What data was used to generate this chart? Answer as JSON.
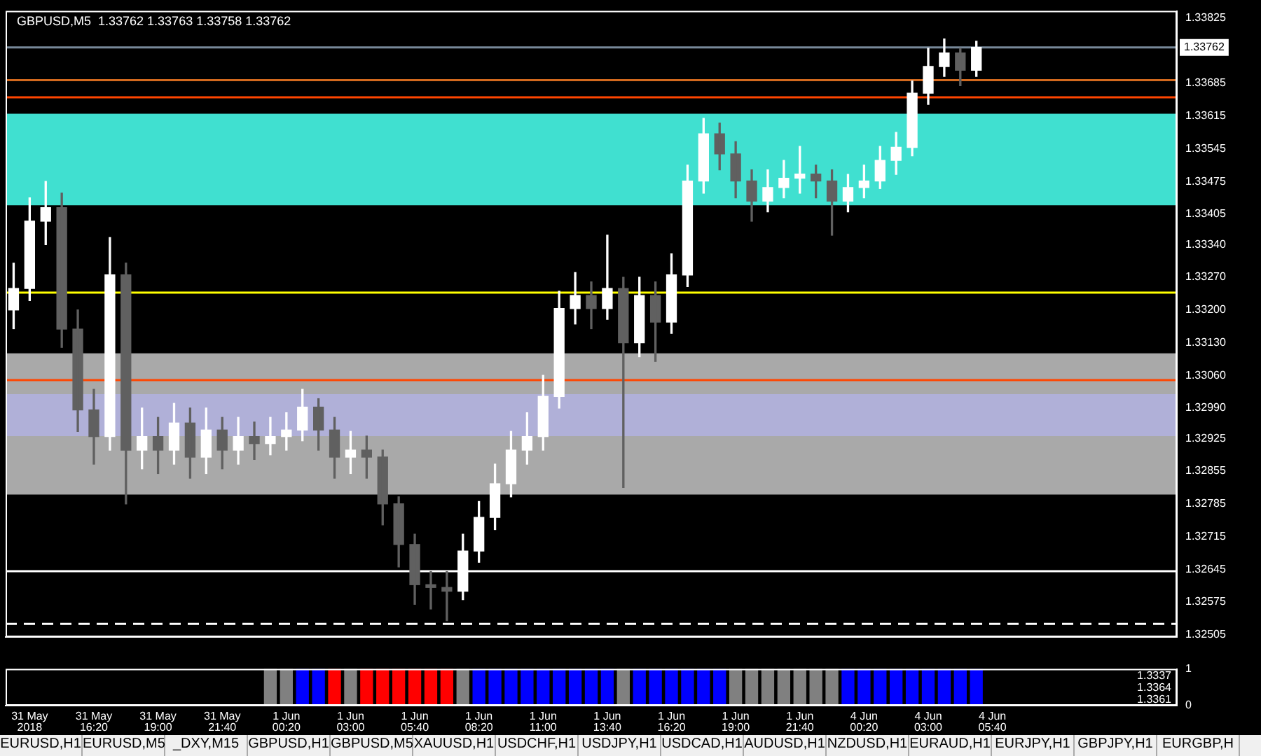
{
  "chart_data": [
    {
      "type": "candlestick",
      "title": "GBPUSD,M5  1.33762 1.33763 1.33758 1.33762",
      "colors": [
        "#ffffff",
        "#ffffff",
        "#ffffff",
        "#606060",
        "#606060",
        "#606060",
        "#ffffff",
        "#606060",
        "#ffffff",
        "#606060",
        "#ffffff",
        "#606060",
        "#ffffff",
        "#606060",
        "#ffffff",
        "#606060",
        "#ffffff",
        "#ffffff",
        "#ffffff",
        "#606060",
        "#606060",
        "#ffffff",
        "#606060",
        "#606060",
        "#606060",
        "#606060",
        "#606060",
        "#606060",
        "#ffffff",
        "#ffffff",
        "#ffffff",
        "#ffffff",
        "#ffffff",
        "#ffffff",
        "#ffffff",
        "#ffffff",
        "#606060",
        "#ffffff",
        "#606060",
        "#ffffff",
        "#606060",
        "#ffffff",
        "#ffffff",
        "#ffffff",
        "#606060",
        "#606060",
        "#606060",
        "#ffffff",
        "#ffffff",
        "#ffffff",
        "#606060",
        "#606060",
        "#ffffff",
        "#ffffff",
        "#ffffff",
        "#ffffff",
        "#ffffff",
        "#ffffff",
        "#ffffff",
        "#606060",
        "#ffffff",
        null,
        null,
        null,
        null,
        null,
        null,
        null,
        null,
        null,
        null,
        null,
        null
      ],
      "categories": [
        null,
        null,
        null,
        null,
        null,
        null,
        null,
        null,
        null,
        null,
        null,
        null,
        null,
        null,
        null,
        null,
        null,
        null,
        null,
        null,
        null,
        null,
        null,
        null,
        null,
        null,
        null,
        null,
        null,
        null,
        null,
        null,
        null,
        null,
        null,
        null,
        null,
        null,
        null,
        null,
        null,
        null,
        null,
        null,
        null,
        null,
        null,
        null,
        null,
        null,
        null,
        null,
        null,
        null,
        null,
        null,
        null,
        null,
        null,
        null,
        null,
        null,
        null,
        null,
        null,
        null,
        null,
        null,
        null,
        null,
        null,
        null,
        null
      ],
      "ohlc": [
        [
          1.332,
          1.333,
          1.3316,
          1.33246
        ],
        [
          1.33246,
          1.3344,
          1.3322,
          1.3339
        ],
        [
          1.3339,
          1.33475,
          1.3334,
          1.33419
        ],
        [
          1.33419,
          1.3345,
          1.3312,
          1.33159
        ],
        [
          1.33159,
          1.332,
          1.3294,
          1.32986
        ],
        [
          1.32986,
          1.3303,
          1.3287,
          1.32929
        ],
        [
          1.32929,
          1.33355,
          1.329,
          1.33275
        ],
        [
          1.33275,
          1.333,
          1.32785,
          1.329
        ],
        [
          1.329,
          1.3299,
          1.3286,
          1.32929
        ],
        [
          1.32929,
          1.3297,
          1.3285,
          1.329
        ],
        [
          1.329,
          1.33,
          1.3287,
          1.32958
        ],
        [
          1.32958,
          1.3299,
          1.3284,
          1.32885
        ],
        [
          1.32885,
          1.3299,
          1.3285,
          1.32943
        ],
        [
          1.32943,
          1.3297,
          1.3286,
          1.329
        ],
        [
          1.329,
          1.3297,
          1.3287,
          1.32929
        ],
        [
          1.32929,
          1.3296,
          1.3288,
          1.32914
        ],
        [
          1.32914,
          1.3297,
          1.3289,
          1.32929
        ],
        [
          1.32929,
          1.3298,
          1.329,
          1.32943
        ],
        [
          1.32943,
          1.3303,
          1.3292,
          1.32992
        ],
        [
          1.32992,
          1.3301,
          1.329,
          1.32943
        ],
        [
          1.32943,
          1.3297,
          1.3284,
          1.32885
        ],
        [
          1.32885,
          1.3294,
          1.3285,
          1.329
        ],
        [
          1.329,
          1.3293,
          1.3284,
          1.32885
        ],
        [
          1.32885,
          1.329,
          1.3274,
          1.32785
        ],
        [
          1.32785,
          1.328,
          1.3265,
          1.32698
        ],
        [
          1.32698,
          1.3272,
          1.3257,
          1.32612
        ],
        [
          1.32612,
          1.3264,
          1.3256,
          1.32606
        ],
        [
          1.32606,
          1.3264,
          1.32535,
          1.32598
        ],
        [
          1.32598,
          1.3272,
          1.3258,
          1.32684
        ],
        [
          1.32684,
          1.3279,
          1.3266,
          1.32756
        ],
        [
          1.32756,
          1.3287,
          1.3273,
          1.32828
        ],
        [
          1.32828,
          1.3294,
          1.328,
          1.329
        ],
        [
          1.329,
          1.3298,
          1.3287,
          1.32929
        ],
        [
          1.32929,
          1.3306,
          1.329,
          1.33015
        ],
        [
          1.33015,
          1.3324,
          1.3299,
          1.33203
        ],
        [
          1.33203,
          1.3328,
          1.3317,
          1.33231
        ],
        [
          1.33231,
          1.3326,
          1.3316,
          1.33203
        ],
        [
          1.33203,
          1.3336,
          1.3318,
          1.33246
        ],
        [
          1.33246,
          1.3327,
          1.3282,
          1.3313
        ],
        [
          1.3313,
          1.3327,
          1.331,
          1.33231
        ],
        [
          1.33231,
          1.3326,
          1.3309,
          1.33174
        ],
        [
          1.33174,
          1.3332,
          1.3315,
          1.33275
        ],
        [
          1.33275,
          1.3351,
          1.3325,
          1.33476
        ],
        [
          1.33476,
          1.3361,
          1.3345,
          1.33577
        ],
        [
          1.33577,
          1.336,
          1.335,
          1.33534
        ],
        [
          1.33534,
          1.3356,
          1.3344,
          1.33476
        ],
        [
          1.33476,
          1.335,
          1.3339,
          1.33433
        ],
        [
          1.33433,
          1.335,
          1.3341,
          1.33462
        ],
        [
          1.33462,
          1.3352,
          1.3344,
          1.33482
        ],
        [
          1.33482,
          1.3355,
          1.3345,
          1.33491
        ],
        [
          1.33491,
          1.3351,
          1.3344,
          1.33476
        ],
        [
          1.33476,
          1.335,
          1.3336,
          1.33433
        ],
        [
          1.33433,
          1.3349,
          1.3341,
          1.33462
        ],
        [
          1.33462,
          1.3351,
          1.3344,
          1.33476
        ],
        [
          1.33476,
          1.3355,
          1.3346,
          1.3352
        ],
        [
          1.3352,
          1.3358,
          1.3349,
          1.33548
        ],
        [
          1.33548,
          1.3369,
          1.3353,
          1.33664
        ],
        [
          1.33664,
          1.3376,
          1.3364,
          1.33721
        ],
        [
          1.33721,
          1.3378,
          1.337,
          1.3375
        ],
        [
          1.3375,
          1.3376,
          1.3368,
          1.33713
        ],
        [
          1.33713,
          1.33775,
          1.337,
          1.33762
        ],
        null,
        null,
        null,
        null,
        null,
        null,
        null,
        null,
        null,
        null,
        null,
        null
      ],
      "ylim": [
        1.325,
        1.3384
      ],
      "yticks": [
        {
          "value": 1.33825,
          "label": "1.33825"
        },
        {
          "value": 1.33685,
          "label": "1.33685"
        },
        {
          "value": 1.33615,
          "label": "1.33615"
        },
        {
          "value": 1.33545,
          "label": "1.33545"
        },
        {
          "value": 1.33475,
          "label": "1.33475"
        },
        {
          "value": 1.33405,
          "label": "1.33405"
        },
        {
          "value": 1.3334,
          "label": "1.33340"
        },
        {
          "value": 1.3327,
          "label": "1.33270"
        },
        {
          "value": 1.332,
          "label": "1.33200"
        },
        {
          "value": 1.3313,
          "label": "1.33130"
        },
        {
          "value": 1.3306,
          "label": "1.33060"
        },
        {
          "value": 1.3299,
          "label": "1.32990"
        },
        {
          "value": 1.32925,
          "label": "1.32925"
        },
        {
          "value": 1.32855,
          "label": "1.32855"
        },
        {
          "value": 1.32785,
          "label": "1.32785"
        },
        {
          "value": 1.32715,
          "label": "1.32715"
        },
        {
          "value": 1.32645,
          "label": "1.32645"
        },
        {
          "value": 1.32575,
          "label": "1.32575"
        },
        {
          "value": 1.32505,
          "label": "1.32505"
        }
      ],
      "grid": false,
      "bands": [
        {
          "axis": "y",
          "from": 1.33424,
          "to": 1.3362,
          "color": "#40e0d0"
        },
        {
          "axis": "y",
          "from": 1.32805,
          "to": 1.33107,
          "color": "#a9a9a9"
        },
        {
          "axis": "y",
          "from": 1.3293,
          "to": 1.3302,
          "color": "#b0b0d8"
        }
      ],
      "ref_lines": [
        {
          "axis": "y",
          "value": 1.33762,
          "label": "1.33762",
          "color": "#778899"
        },
        {
          "axis": "y",
          "value": 1.33655,
          "color": "#ff4500"
        },
        {
          "axis": "y",
          "value": 1.33692,
          "color": "#d2691e"
        },
        {
          "axis": "y",
          "value": 1.33237,
          "color": "#ffff00"
        },
        {
          "axis": "y",
          "value": 1.3305,
          "color": "#ff4500"
        },
        {
          "axis": "y",
          "value": 1.32641,
          "color": "#ffffff"
        },
        {
          "axis": "y",
          "value": 1.32528,
          "color": "#ffffff",
          "line_style": "dashed"
        }
      ]
    },
    {
      "type": "bar",
      "categories": [
        null,
        "31 May 2018",
        null,
        null,
        null,
        "31 May 16:20",
        null,
        null,
        null,
        "31 May 19:00",
        null,
        null,
        null,
        "31 May 21:40",
        null,
        null,
        null,
        "1 Jun 00:20",
        null,
        null,
        null,
        "1 Jun 03:00",
        null,
        null,
        null,
        "1 Jun 05:40",
        null,
        null,
        null,
        "1 Jun 08:20",
        null,
        null,
        null,
        "1 Jun 11:00",
        null,
        null,
        null,
        "1 Jun 13:40",
        null,
        null,
        null,
        "1 Jun 16:20",
        null,
        null,
        null,
        "1 Jun 19:00",
        null,
        null,
        null,
        "1 Jun 21:40",
        null,
        null,
        null,
        "4 Jun 00:20",
        null,
        null,
        null,
        "4 Jun 03:00",
        null,
        null,
        null,
        "4 Jun 05:40",
        null,
        null,
        null,
        null,
        null,
        null,
        null,
        null,
        null,
        null,
        null
      ],
      "values": [
        null,
        null,
        null,
        null,
        null,
        null,
        null,
        null,
        null,
        null,
        null,
        null,
        null,
        null,
        null,
        null,
        1,
        1,
        1,
        1,
        1,
        1,
        1,
        1,
        1,
        1,
        1,
        1,
        1,
        1,
        1,
        1,
        1,
        1,
        1,
        1,
        1,
        1,
        1,
        1,
        1,
        1,
        1,
        1,
        1,
        1,
        1,
        1,
        1,
        1,
        1,
        1,
        1,
        1,
        1,
        1,
        1,
        1,
        1,
        1,
        1,
        null,
        null,
        null,
        null,
        null,
        null,
        null,
        null,
        null,
        null,
        null,
        null
      ],
      "colors": [
        "#808080",
        "#808080",
        "#808080",
        "#808080",
        "#808080",
        "#808080",
        "#808080",
        "#808080",
        "#808080",
        "#808080",
        "#808080",
        "#808080",
        "#808080",
        "#808080",
        "#808080",
        "#808080",
        "#808080",
        "#808080",
        "#0000ff",
        "#0000ff",
        "#ff0000",
        "#808080",
        "#ff0000",
        "#ff0000",
        "#ff0000",
        "#ff0000",
        "#ff0000",
        "#ff0000",
        "#808080",
        "#0000ff",
        "#0000ff",
        "#0000ff",
        "#0000ff",
        "#0000ff",
        "#0000ff",
        "#0000ff",
        "#0000ff",
        "#0000ff",
        "#808080",
        "#0000ff",
        "#0000ff",
        "#0000ff",
        "#0000ff",
        "#0000ff",
        "#0000ff",
        "#808080",
        "#808080",
        "#808080",
        "#808080",
        "#808080",
        "#808080",
        "#808080",
        "#0000ff",
        "#0000ff",
        "#0000ff",
        "#0000ff",
        "#0000ff",
        "#0000ff",
        "#0000ff",
        "#0000ff",
        "#0000ff",
        "#0000ff",
        "#0000ff",
        "#0000ff",
        "#0000ff",
        "#0000ff",
        "#0000ff",
        "#0000ff",
        "#0000ff",
        "#0000ff",
        "#0000ff",
        "#0000ff",
        "#0000ff"
      ],
      "ylim": [
        0,
        1
      ],
      "yticks": [
        0,
        1
      ],
      "grid": false,
      "annotations": [
        "1.3337",
        "1.3364",
        "1.3361"
      ]
    },
    {
      "type": "other",
      "annotations": [
        "EURUSD,H1",
        "EURUSD,M5",
        "_DXY,M15",
        "GBPUSD,H1",
        "GBPUSD,M5",
        "XAUUSD,H1",
        "USDCHF,H1",
        "USDJPY,H1",
        "USDCAD,H1",
        "AUDUSD,H1",
        "NZDUSD,H1",
        "EURAUD,H1",
        "EURJPY,H1",
        "GBPJPY,H1",
        "EURGBP,H"
      ]
    }
  ]
}
